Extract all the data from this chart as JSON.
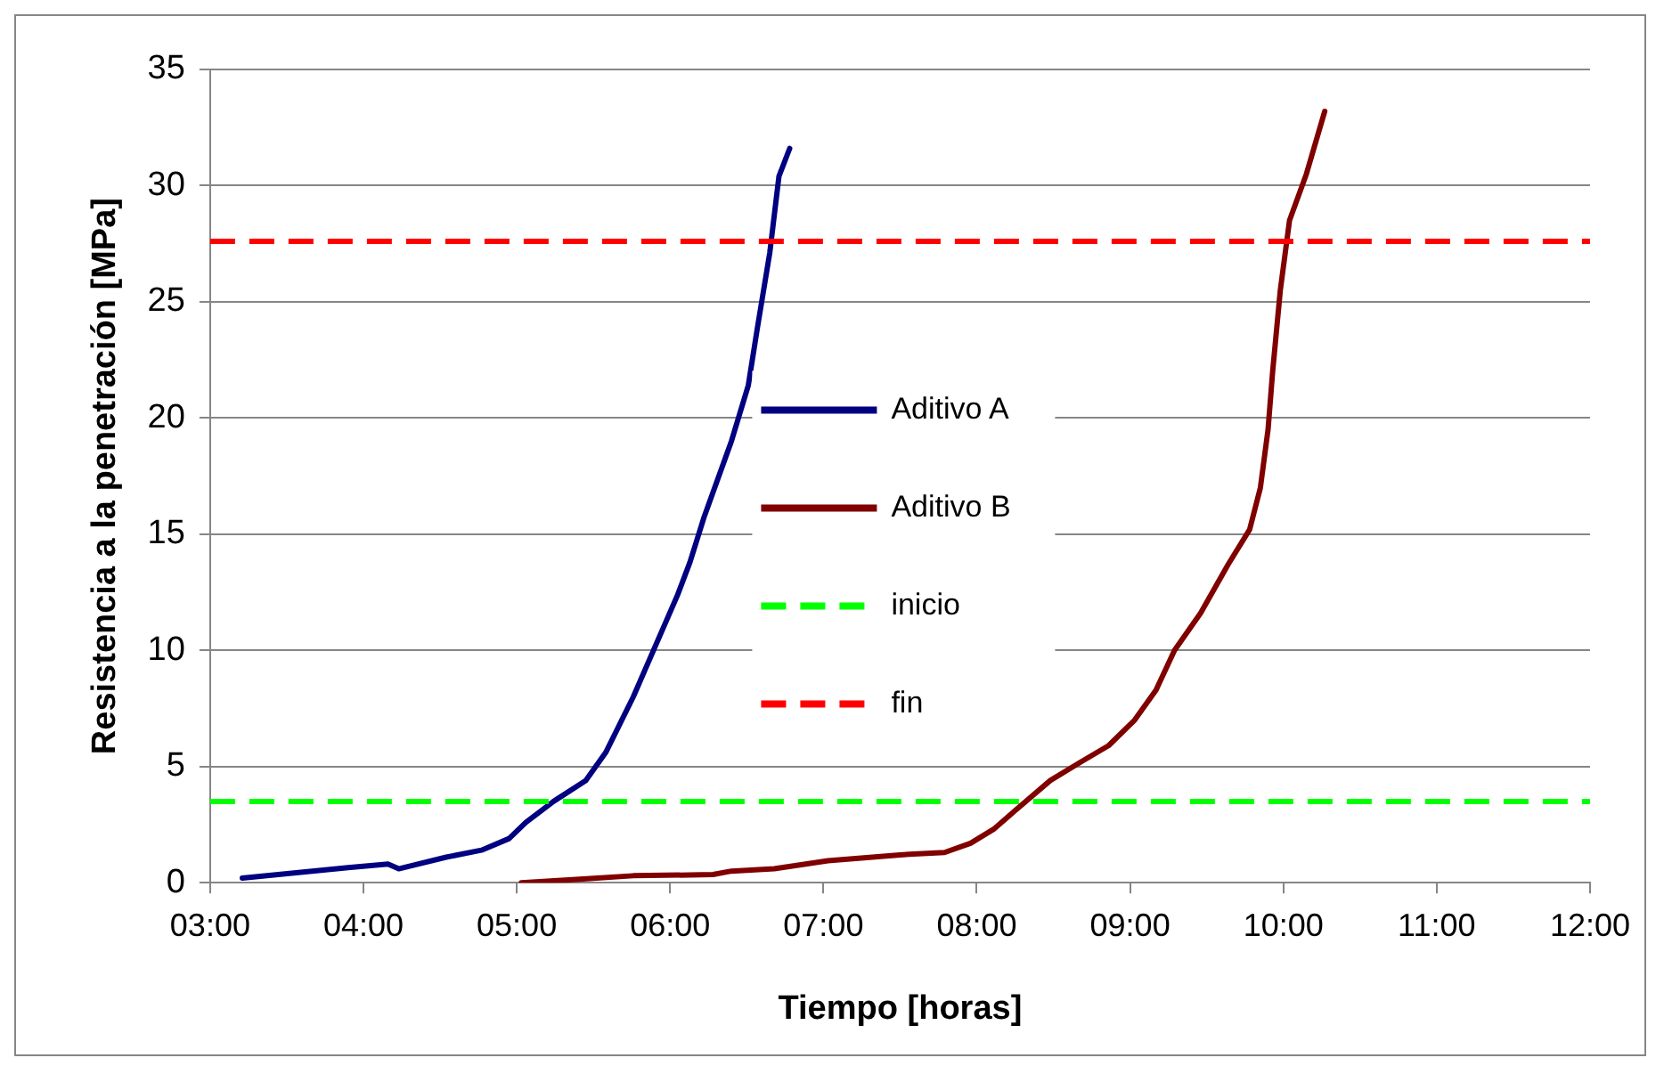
{
  "chart_data": {
    "type": "line",
    "xlabel": "Tiempo [horas]",
    "ylabel": "Resistencia a la penetración [MPa]",
    "xlim": [
      3,
      12
    ],
    "xticks": [
      {
        "value": 3,
        "label": "03:00"
      },
      {
        "value": 4,
        "label": "04:00"
      },
      {
        "value": 5,
        "label": "05:00"
      },
      {
        "value": 6,
        "label": "06:00"
      },
      {
        "value": 7,
        "label": "07:00"
      },
      {
        "value": 8,
        "label": "08:00"
      },
      {
        "value": 9,
        "label": "09:00"
      },
      {
        "value": 10,
        "label": "10:00"
      },
      {
        "value": 11,
        "label": "11:00"
      },
      {
        "value": 12,
        "label": "12:00"
      }
    ],
    "ylim": [
      0,
      35
    ],
    "yticks": [
      0,
      5,
      10,
      15,
      20,
      25,
      30,
      35
    ],
    "grid": "y",
    "legend": "center",
    "marker": "none",
    "line_style": "solid",
    "series": [
      {
        "name": "Aditivo A",
        "color": "#000080",
        "x": [
          3.21,
          3.9,
          4.16,
          4.23,
          4.54,
          4.77,
          4.95,
          5.06,
          5.24,
          5.45,
          5.58,
          5.76,
          6.05,
          6.13,
          6.22,
          6.4,
          6.51,
          6.57,
          6.65,
          6.71,
          6.78
        ],
        "values": [
          0.2,
          0.65,
          0.8,
          0.6,
          1.1,
          1.4,
          1.9,
          2.6,
          3.5,
          4.4,
          5.6,
          8,
          12.4,
          13.8,
          15.7,
          19,
          21.4,
          23.9,
          27.1,
          30.4,
          31.6
        ]
      },
      {
        "name": "Aditivo B",
        "color": "#800000",
        "x": [
          5.03,
          5.41,
          5.76,
          6.28,
          6.4,
          6.68,
          7.03,
          7.5,
          7.79,
          7.96,
          8.11,
          8.25,
          8.48,
          8.68,
          8.86,
          9.03,
          9.17,
          9.29,
          9.46,
          9.64,
          9.78,
          9.85,
          9.9,
          9.93,
          9.98,
          10.04,
          10.15,
          10.27
        ],
        "values": [
          0,
          0.15,
          0.3,
          0.35,
          0.5,
          0.6,
          0.95,
          1.2,
          1.3,
          1.7,
          2.3,
          3.1,
          4.4,
          5.2,
          5.9,
          7,
          8.3,
          10,
          11.6,
          13.7,
          15.2,
          17,
          19.5,
          22,
          25.5,
          28.5,
          30.5,
          33.2
        ]
      }
    ],
    "ref_lines": [
      {
        "axis": "y",
        "value": 3.5,
        "label": "inicio",
        "color": "#00ff00",
        "line_style": "dashed"
      },
      {
        "axis": "y",
        "value": 27.6,
        "label": "fin",
        "color": "#ff0000",
        "line_style": "dashed"
      }
    ]
  }
}
